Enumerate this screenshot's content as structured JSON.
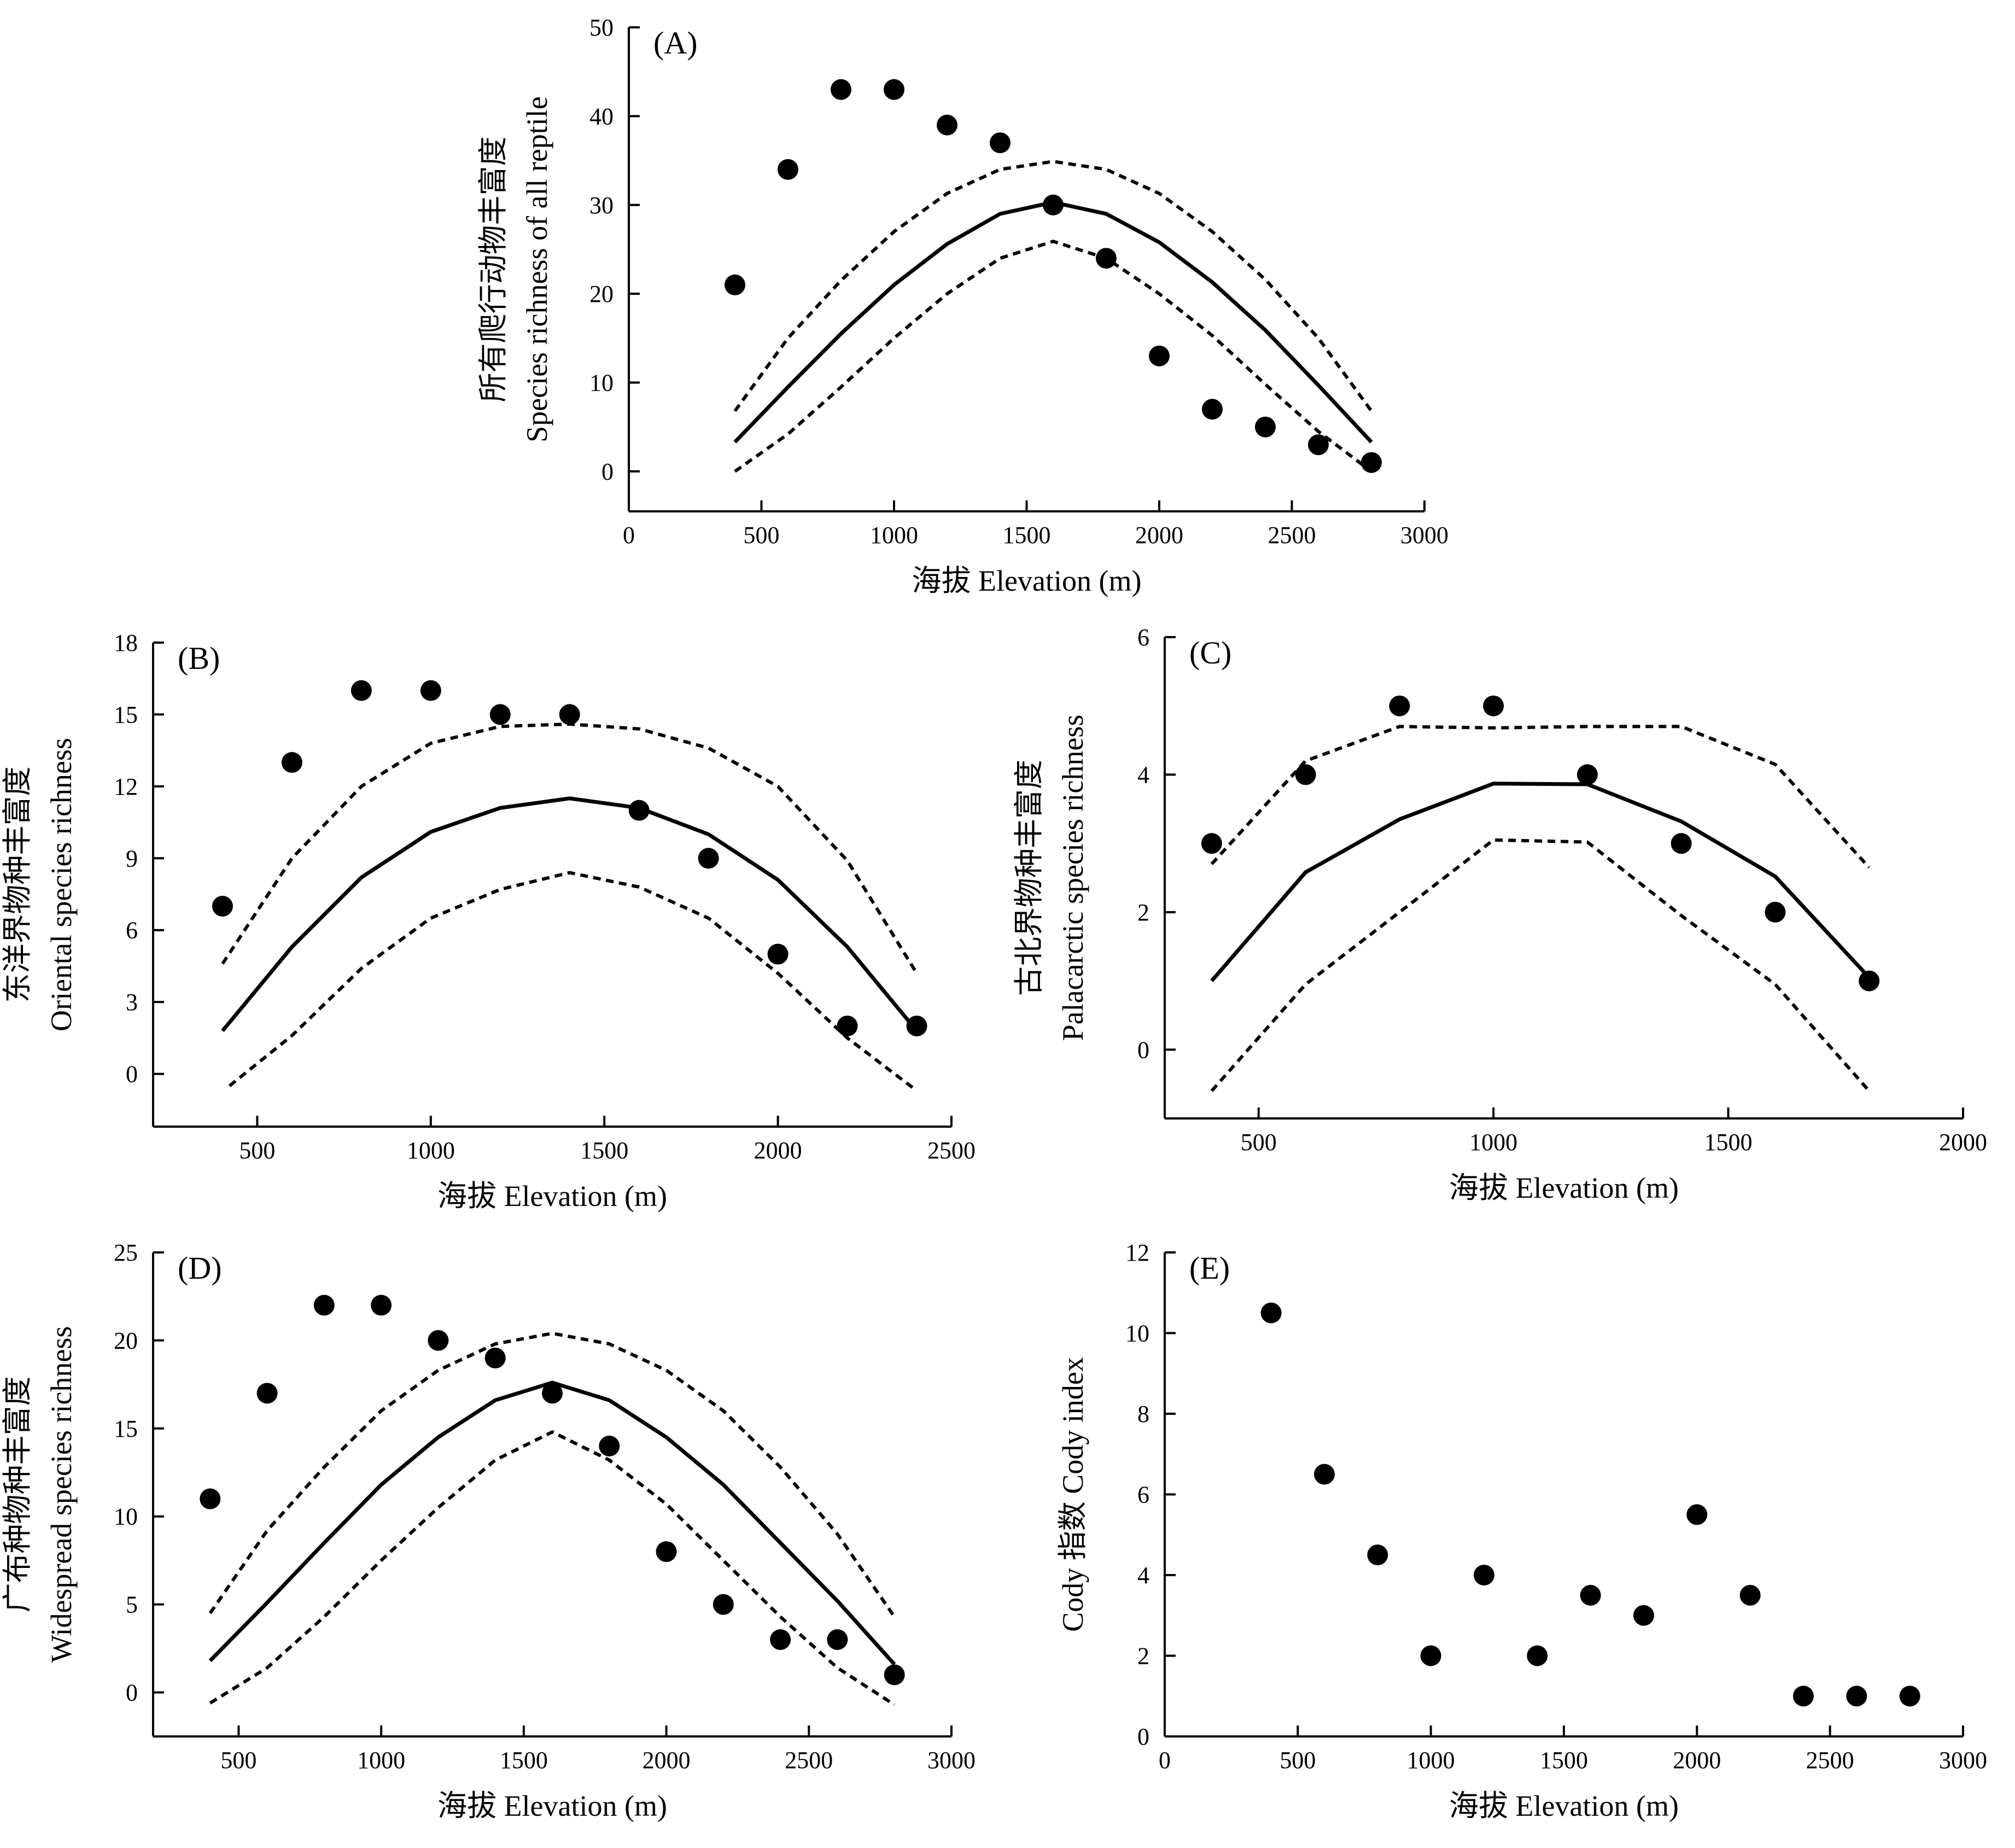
{
  "chart_data": [
    {
      "type": "scatter",
      "panel_label": "(A)",
      "xlabel": "海拔 Elevation (m)",
      "ylabel": [
        "所有爬行动物丰富度",
        "Species richness of all reptile"
      ],
      "xlim": [
        0,
        3000
      ],
      "ylim": [
        -4.5,
        50
      ],
      "xticks": [
        "0",
        "500",
        "1000",
        "1500",
        "2000",
        "2500",
        "3000"
      ],
      "yticks": [
        "0",
        "10",
        "20",
        "30",
        "40",
        "50"
      ],
      "points": {
        "x": [
          400,
          600,
          800,
          1000,
          1200,
          1400,
          1600,
          1800,
          2000,
          2200,
          2400,
          2600,
          2800
        ],
        "y": [
          21,
          34,
          43,
          43,
          39,
          37,
          30,
          24,
          13,
          7,
          5,
          3,
          1
        ]
      },
      "lines": [
        {
          "style": "solid",
          "x": [
            400,
            600,
            800,
            1000,
            1200,
            1400,
            1600,
            1800,
            2000,
            2200,
            2400,
            2600,
            2800
          ],
          "y": [
            3.3,
            9.5,
            15.5,
            21,
            25.6,
            29,
            30.3,
            29,
            25.8,
            21.3,
            15.9,
            9.7,
            3.3
          ]
        },
        {
          "style": "dashed",
          "x": [
            400,
            600,
            800,
            1000,
            1200,
            1400,
            1600,
            1800,
            2000,
            2200,
            2400,
            2600,
            2800
          ],
          "y": [
            6.8,
            15,
            21.5,
            27,
            31.3,
            34,
            34.9,
            34,
            31.3,
            27,
            21.6,
            15,
            6.8
          ]
        },
        {
          "style": "dashed",
          "x": [
            400,
            600,
            800,
            1000,
            1200,
            1400,
            1600,
            1800,
            2000,
            2200,
            2400,
            2600,
            2800
          ],
          "y": [
            0,
            4.2,
            9.5,
            15,
            20,
            24,
            25.9,
            24,
            20,
            15.3,
            9.8,
            4.5,
            0
          ]
        }
      ]
    },
    {
      "type": "scatter",
      "panel_label": "(B)",
      "xlabel": "海拔 Elevation (m)",
      "ylabel": [
        "东洋界物种丰富度",
        "Oriental species richness"
      ],
      "xlim": [
        200,
        2500
      ],
      "ylim": [
        -2.2,
        18
      ],
      "xticks": [
        "500",
        "1000",
        "1500",
        "2000",
        "2500"
      ],
      "yticks": [
        "0",
        "3",
        "6",
        "9",
        "12",
        "15",
        "18"
      ],
      "points": {
        "x": [
          400,
          600,
          800,
          1000,
          1200,
          1400,
          1600,
          1800,
          2000,
          2200,
          2400
        ],
        "y": [
          7,
          13,
          16,
          16,
          15,
          15,
          11,
          9,
          5,
          2,
          2
        ]
      },
      "lines": [
        {
          "style": "solid",
          "x": [
            400,
            600,
            800,
            1000,
            1200,
            1400,
            1600,
            1800,
            2000,
            2200,
            2400
          ],
          "y": [
            1.8,
            5.3,
            8.2,
            10.1,
            11.1,
            11.5,
            11.1,
            10,
            8.1,
            5.3,
            1.8
          ]
        },
        {
          "style": "dashed",
          "x": [
            400,
            600,
            800,
            1000,
            1200,
            1400,
            1600,
            1800,
            2000,
            2200,
            2400
          ],
          "y": [
            4.6,
            9,
            12,
            13.8,
            14.5,
            14.6,
            14.4,
            13.6,
            12,
            8.9,
            4.2
          ]
        },
        {
          "style": "dashed",
          "x": [
            420,
            600,
            800,
            1000,
            1200,
            1400,
            1600,
            1800,
            2000,
            2200,
            2400
          ],
          "y": [
            -0.5,
            1.6,
            4.4,
            6.5,
            7.7,
            8.4,
            7.8,
            6.5,
            4.2,
            1.5,
            -0.7
          ]
        }
      ]
    },
    {
      "type": "scatter",
      "panel_label": "(C)",
      "xlabel": "海拔 Elevation (m)",
      "ylabel": [
        "古北界物种丰富度",
        "Palacarctic species richness"
      ],
      "xlim": [
        300,
        2000
      ],
      "ylim": [
        -1,
        6
      ],
      "xticks": [
        "500",
        "1000",
        "1500",
        "2000"
      ],
      "yticks": [
        "0",
        "2",
        "4",
        "6"
      ],
      "points": {
        "x": [
          400,
          600,
          800,
          1000,
          1200,
          1400,
          1600,
          1800
        ],
        "y": [
          3,
          4,
          5,
          5,
          4,
          3,
          2,
          1
        ]
      },
      "lines": [
        {
          "style": "solid",
          "x": [
            400,
            600,
            800,
            1000,
            1200,
            1400,
            1600,
            1800
          ],
          "y": [
            1,
            2.58,
            3.35,
            3.87,
            3.86,
            3.32,
            2.52,
            1.05
          ]
        },
        {
          "style": "dashed",
          "x": [
            400,
            600,
            800,
            1000,
            1200,
            1400,
            1600,
            1800
          ],
          "y": [
            2.7,
            4.2,
            4.7,
            4.68,
            4.7,
            4.7,
            4.15,
            2.65
          ]
        },
        {
          "style": "dashed",
          "x": [
            400,
            600,
            800,
            1000,
            1200,
            1400,
            1600,
            1800
          ],
          "y": [
            -0.6,
            0.95,
            2,
            3.05,
            3.02,
            1.95,
            0.95,
            -0.6
          ]
        }
      ]
    },
    {
      "type": "scatter",
      "panel_label": "(D)",
      "xlabel": "海拔 Elevation (m)",
      "ylabel": [
        "广布种物种丰富度",
        "Widespread species richness"
      ],
      "xlim": [
        200,
        3000
      ],
      "ylim": [
        -2.5,
        25
      ],
      "xticks": [
        "500",
        "1000",
        "1500",
        "2000",
        "2500",
        "3000"
      ],
      "yticks": [
        "0",
        "5",
        "10",
        "15",
        "20",
        "25"
      ],
      "points": {
        "x": [
          400,
          600,
          800,
          1000,
          1200,
          1400,
          1600,
          1800,
          2000,
          2200,
          2400,
          2600,
          2800
        ],
        "y": [
          11,
          17,
          22,
          22,
          20,
          19,
          17,
          14,
          8,
          5,
          3,
          3,
          1
        ]
      },
      "lines": [
        {
          "style": "solid",
          "x": [
            400,
            600,
            800,
            1000,
            1200,
            1400,
            1600,
            1800,
            2000,
            2200,
            2400,
            2600,
            2800
          ],
          "y": [
            1.8,
            5.1,
            8.5,
            11.8,
            14.5,
            16.6,
            17.6,
            16.6,
            14.5,
            11.8,
            8.5,
            5.2,
            1.6
          ]
        },
        {
          "style": "dashed",
          "x": [
            400,
            600,
            800,
            1000,
            1200,
            1400,
            1600,
            1800,
            2000,
            2200,
            2400,
            2600,
            2800
          ],
          "y": [
            4.5,
            9.2,
            12.8,
            16,
            18.3,
            19.8,
            20.4,
            19.8,
            18.3,
            16,
            12.8,
            9,
            4.3
          ]
        },
        {
          "style": "dashed",
          "x": [
            400,
            600,
            800,
            1000,
            1200,
            1400,
            1600,
            1800,
            2000,
            2200,
            2400,
            2600,
            2800
          ],
          "y": [
            -0.6,
            1.4,
            4.3,
            7.5,
            10.5,
            13.2,
            14.8,
            13.2,
            10.7,
            7.5,
            4.3,
            1.4,
            -0.7
          ]
        }
      ]
    },
    {
      "type": "scatter",
      "panel_label": "(E)",
      "xlabel": "海拔 Elevation (m)",
      "ylabel": [
        "Cody 指数 Cody index"
      ],
      "xlim": [
        0,
        3000
      ],
      "ylim": [
        0,
        12
      ],
      "xticks": [
        "0",
        "500",
        "1000",
        "1500",
        "2000",
        "2500",
        "3000"
      ],
      "yticks": [
        "0",
        "2",
        "4",
        "6",
        "8",
        "10",
        "12"
      ],
      "points": {
        "x": [
          400,
          600,
          800,
          1000,
          1200,
          1400,
          1600,
          1800,
          2000,
          2200,
          2400,
          2600,
          2800
        ],
        "y": [
          10.5,
          6.5,
          4.5,
          2,
          4,
          2,
          3.5,
          3,
          5.5,
          3.5,
          1,
          1,
          1
        ]
      },
      "lines": []
    }
  ]
}
